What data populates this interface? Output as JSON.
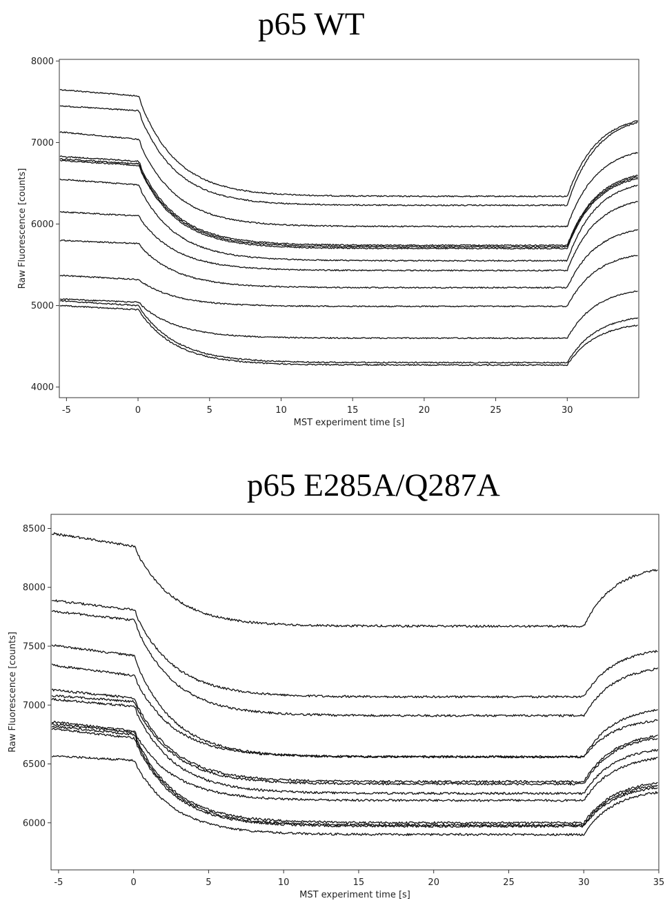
{
  "chart_data": [
    {
      "type": "line",
      "title": "p65 WT",
      "xlabel": "MST experiment time [s]",
      "ylabel": "Raw Fluorescence [counts]",
      "xlim": [
        -5.5,
        35
      ],
      "ylim": [
        3870,
        8020
      ],
      "xticks": [
        -5,
        0,
        5,
        10,
        15,
        20,
        25,
        30
      ],
      "yticks": [
        4000,
        5000,
        6000,
        7000,
        8000
      ],
      "grid": false,
      "legend": "none",
      "line_color": "#111111",
      "series": [
        {
          "initial": 7650,
          "pre_end": 7570,
          "plateau": 6340,
          "final": 7270
        },
        {
          "initial": 7450,
          "pre_end": 7390,
          "plateau": 6230,
          "final": 7250
        },
        {
          "initial": 7130,
          "pre_end": 7040,
          "plateau": 5970,
          "final": 6880
        },
        {
          "initial": 6830,
          "pre_end": 6770,
          "plateau": 5740,
          "final": 6600
        },
        {
          "initial": 6800,
          "pre_end": 6740,
          "plateau": 5720,
          "final": 6580
        },
        {
          "initial": 6780,
          "pre_end": 6720,
          "plateau": 5700,
          "final": 6560
        },
        {
          "initial": 6550,
          "pre_end": 6480,
          "plateau": 5550,
          "final": 6480
        },
        {
          "initial": 6150,
          "pre_end": 6100,
          "plateau": 5430,
          "final": 6280
        },
        {
          "initial": 5800,
          "pre_end": 5760,
          "plateau": 5220,
          "final": 5930
        },
        {
          "initial": 5370,
          "pre_end": 5320,
          "plateau": 4990,
          "final": 5620
        },
        {
          "initial": 5080,
          "pre_end": 5040,
          "plateau": 4600,
          "final": 5180
        },
        {
          "initial": 5060,
          "pre_end": 5000,
          "plateau": 4300,
          "final": 4850
        },
        {
          "initial": 5000,
          "pre_end": 4950,
          "plateau": 4270,
          "final": 4760
        }
      ]
    },
    {
      "type": "line",
      "title": "p65 E285A/Q287A",
      "xlabel": "MST experiment time [s]",
      "ylabel": "Raw Fluorescence [counts]",
      "xlim": [
        -5.5,
        35
      ],
      "ylim": [
        5600,
        8620
      ],
      "xticks": [
        -5,
        0,
        5,
        10,
        15,
        20,
        25,
        30,
        35
      ],
      "yticks": [
        6000,
        6500,
        7000,
        7500,
        8000,
        8500
      ],
      "grid": false,
      "legend": "none",
      "line_color": "#111111",
      "series": [
        {
          "initial": 8460,
          "pre_end": 8350,
          "plateau": 7670,
          "final": 8150
        },
        {
          "initial": 7890,
          "pre_end": 7810,
          "plateau": 7070,
          "final": 7460
        },
        {
          "initial": 7800,
          "pre_end": 7720,
          "plateau": 6910,
          "final": 7310
        },
        {
          "initial": 7510,
          "pre_end": 7420,
          "plateau": 6560,
          "final": 6960
        },
        {
          "initial": 7340,
          "pre_end": 7250,
          "plateau": 6560,
          "final": 6870
        },
        {
          "initial": 7130,
          "pre_end": 7060,
          "plateau": 6350,
          "final": 6740
        },
        {
          "initial": 7080,
          "pre_end": 7030,
          "plateau": 6330,
          "final": 6720
        },
        {
          "initial": 7050,
          "pre_end": 6990,
          "plateau": 6250,
          "final": 6620
        },
        {
          "initial": 6860,
          "pre_end": 6780,
          "plateau": 6190,
          "final": 6550
        },
        {
          "initial": 6840,
          "pre_end": 6770,
          "plateau": 6000,
          "final": 6340
        },
        {
          "initial": 6820,
          "pre_end": 6750,
          "plateau": 5980,
          "final": 6320
        },
        {
          "initial": 6800,
          "pre_end": 6720,
          "plateau": 5970,
          "final": 6300
        },
        {
          "initial": 6570,
          "pre_end": 6530,
          "plateau": 5900,
          "final": 6260
        }
      ]
    }
  ]
}
